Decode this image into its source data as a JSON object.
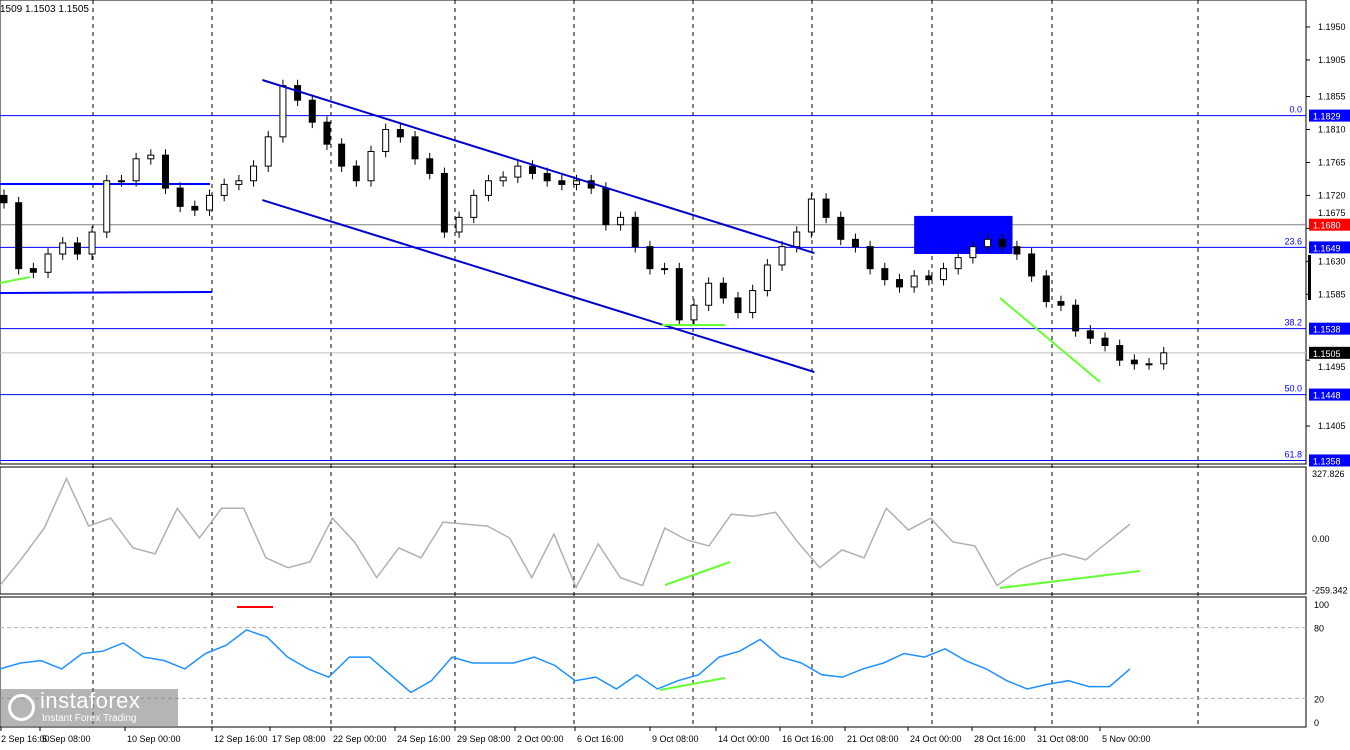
{
  "header": {
    "ohlc": "1509 1.1503 1.1505"
  },
  "logo": {
    "name": "instaforex",
    "tagline": "Instant Forex Trading"
  },
  "chart_data": {
    "type": "candlestick",
    "price_axis": {
      "ticks": [
        "1.1950",
        "1.1905",
        "1.1855",
        "1.1810",
        "1.1765",
        "1.1720",
        "1.1675",
        "1.1630",
        "1.1585",
        "1.1495",
        "1.1405"
      ],
      "range": [
        1.134,
        1.1985
      ]
    },
    "time_axis": {
      "ticks": [
        "2 Sep 16:00",
        "5 Sep 08:00",
        "10 Sep 00:00",
        "12 Sep 16:00",
        "17 Sep 08:00",
        "22 Sep 00:00",
        "24 Sep 16:00",
        "29 Sep 08:00",
        "2 Oct 00:00",
        "6 Oct 16:00",
        "9 Oct 08:00",
        "14 Oct 00:00",
        "16 Oct 16:00",
        "21 Oct 08:00",
        "24 Oct 00:00",
        "28 Oct 16:00",
        "31 Oct 08:00",
        "5 Nov 00:00"
      ]
    },
    "close": [
      1.171,
      1.162,
      1.1615,
      1.164,
      1.1655,
      1.164,
      1.167,
      1.174,
      1.174,
      1.177,
      1.1775,
      1.173,
      1.1705,
      1.17,
      1.172,
      1.1735,
      1.174,
      1.176,
      1.18,
      1.187,
      1.185,
      1.182,
      1.179,
      1.176,
      1.174,
      1.178,
      1.181,
      1.18,
      1.177,
      1.175,
      1.167,
      1.169,
      1.172,
      1.174,
      1.1745,
      1.176,
      1.175,
      1.174,
      1.1735,
      1.174,
      1.173,
      1.168,
      1.169,
      1.165,
      1.162,
      1.162,
      1.155,
      1.157,
      1.16,
      1.158,
      1.156,
      1.159,
      1.1625,
      1.165,
      1.167,
      1.1715,
      1.169,
      1.166,
      1.165,
      1.162,
      1.1605,
      1.1595,
      1.161,
      1.1605,
      1.162,
      1.1635,
      1.165,
      1.166,
      1.165,
      1.164,
      1.161,
      1.1575,
      1.157,
      1.1535,
      1.1525,
      1.1515,
      1.1495,
      1.149,
      1.149,
      1.1505
    ],
    "levels": [
      {
        "label": "0.0",
        "price": "1.1829",
        "color": "#0000ff"
      },
      {
        "label": "23.6",
        "price": "1.1649",
        "color": "#0000ff"
      },
      {
        "label": "38.2",
        "price": "1.1538",
        "color": "#0000ff"
      },
      {
        "label": "50.0",
        "price": "1.1448",
        "color": "#0000ff"
      },
      {
        "label": "61.8",
        "price": "1.1358",
        "color": "#0000ff"
      }
    ],
    "marked_price": {
      "price": "1.1680",
      "color": "#ff0000"
    },
    "current_price": {
      "price": "1.1505",
      "color": "#000000"
    },
    "channel": {
      "upper": [
        [
          17.6,
          1.18776
        ],
        [
          55.2,
          1.16413
        ]
      ],
      "lower": [
        [
          17.6,
          1.17137
        ],
        [
          55.2,
          1.14788
        ]
      ],
      "color": "#0000cc"
    },
    "zone": {
      "from_bar": 62,
      "to_bar": 68.7,
      "top": 1.1692,
      "bottom": 1.164,
      "color": "#0000ff"
    },
    "cci": {
      "ticks": [
        "327.826",
        "0.00",
        "-259.342"
      ],
      "range": [
        -259.342,
        327.826
      ],
      "values": [
        -240,
        -100,
        50,
        300,
        60,
        100,
        -50,
        -80,
        150,
        0,
        150,
        150,
        -100,
        -150,
        -120,
        100,
        -20,
        -200,
        -50,
        -100,
        80,
        70,
        60,
        0,
        -200,
        20,
        -250,
        -30,
        -200,
        -240,
        50,
        -10,
        -40,
        120,
        110,
        130,
        -20,
        -150,
        -60,
        -100,
        150,
        40,
        100,
        -20,
        -40,
        -240,
        -160,
        -110,
        -80,
        -110,
        -20,
        70
      ]
    },
    "rsi": {
      "ticks": [
        "100",
        "80",
        "20",
        "0"
      ],
      "range": [
        0,
        100
      ],
      "levels": [
        80,
        20
      ],
      "values": [
        45,
        50,
        52,
        45,
        58,
        60,
        67,
        55,
        52,
        45,
        58,
        65,
        78,
        72,
        55,
        45,
        38,
        55,
        55,
        40,
        25,
        35,
        55,
        50,
        50,
        50,
        55,
        48,
        35,
        38,
        28,
        40,
        28,
        35,
        40,
        55,
        60,
        70,
        55,
        50,
        40,
        38,
        45,
        50,
        58,
        55,
        62,
        52,
        45,
        35,
        28,
        32,
        35,
        30,
        30,
        45
      ]
    }
  }
}
